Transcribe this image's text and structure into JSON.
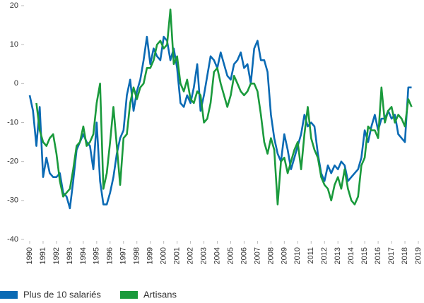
{
  "chart_data": {
    "type": "line",
    "x": [
      1990,
      1990.25,
      1990.5,
      1990.75,
      1991,
      1991.25,
      1991.5,
      1991.75,
      1992,
      1992.25,
      1992.5,
      1992.75,
      1993,
      1993.25,
      1993.5,
      1993.75,
      1994,
      1994.25,
      1994.5,
      1994.75,
      1995,
      1995.25,
      1995.5,
      1995.75,
      1996,
      1996.25,
      1996.5,
      1996.75,
      1997,
      1997.25,
      1997.5,
      1997.75,
      1998,
      1998.25,
      1998.5,
      1998.75,
      1999,
      1999.25,
      1999.5,
      1999.75,
      2000,
      2000.25,
      2000.5,
      2000.75,
      2001,
      2001.25,
      2001.5,
      2001.75,
      2002,
      2002.25,
      2002.5,
      2002.75,
      2003,
      2003.25,
      2003.5,
      2003.75,
      2004,
      2004.25,
      2004.5,
      2004.75,
      2005,
      2005.25,
      2005.5,
      2005.75,
      2006,
      2006.25,
      2006.5,
      2006.75,
      2007,
      2007.25,
      2007.5,
      2007.75,
      2008,
      2008.25,
      2008.5,
      2008.75,
      2009,
      2009.25,
      2009.5,
      2009.75,
      2010,
      2010.25,
      2010.5,
      2010.75,
      2011,
      2011.25,
      2011.5,
      2011.75,
      2012,
      2012.25,
      2012.5,
      2012.75,
      2013,
      2013.25,
      2013.5,
      2013.75,
      2014,
      2014.25,
      2014.5,
      2014.75,
      2015,
      2015.25,
      2015.5,
      2015.75,
      2016,
      2016.25,
      2016.5,
      2016.75,
      2017,
      2017.25,
      2017.5,
      2017.75,
      2018,
      2018.25,
      2018.5
    ],
    "series": [
      {
        "name": "Plus de 10 salariés",
        "color": "#0a6ab4",
        "values": [
          -3,
          -7,
          -16,
          -6,
          -24,
          -19,
          -23,
          -24,
          -24,
          -23,
          -28,
          -29,
          -32,
          -25,
          -17,
          -15,
          -13,
          -15,
          -16,
          -22,
          -10,
          -25,
          -31,
          -31,
          -28,
          -24,
          -18,
          -14,
          -12,
          -3,
          1,
          -7,
          -2,
          1,
          6,
          12,
          5,
          9,
          7,
          6,
          12,
          11,
          6,
          9,
          4,
          -5,
          -6,
          -3,
          -5,
          -1,
          5,
          -7,
          -3,
          2,
          7,
          6,
          4,
          8,
          5,
          2,
          1,
          5,
          6,
          8,
          4,
          5,
          0,
          9,
          11,
          6,
          6,
          3,
          -8,
          -14,
          -18,
          -20,
          -13,
          -17,
          -22,
          -19,
          -16,
          -13,
          -8,
          -11,
          -10,
          -11,
          -18,
          -23,
          -25,
          -21,
          -23,
          -21,
          -22,
          -20,
          -21,
          -25,
          -24,
          -23,
          -22,
          -19,
          -12,
          -15,
          -11,
          -8,
          -12,
          -9,
          -9,
          -7,
          -9,
          -8,
          -13,
          -14,
          -15,
          -1,
          -1
        ]
      },
      {
        "name": "Artisans",
        "color": "#1a9a3c",
        "values": [
          null,
          null,
          -5,
          -12,
          -15,
          -16,
          -14,
          -13,
          -18,
          -25,
          -29,
          -28,
          -27,
          -22,
          -16,
          -15,
          -11,
          -16,
          -15,
          -13,
          -5,
          0,
          -27,
          -23,
          -15,
          -6,
          -16,
          -26,
          -14,
          -13,
          -5,
          -1,
          -4,
          -1,
          0,
          4,
          4,
          6,
          10,
          11,
          9,
          10,
          19,
          5,
          7,
          0,
          -2,
          1,
          -4,
          -5,
          -2,
          -3,
          -10,
          -9,
          -5,
          3,
          4,
          0,
          -3,
          -6,
          -3,
          2,
          0,
          -2,
          -3,
          -2,
          0,
          0,
          -2,
          -8,
          -15,
          -18,
          -14,
          -17,
          -31,
          -20,
          -19,
          -23,
          -20,
          -17,
          -15,
          -22,
          -13,
          -6,
          -14,
          -17,
          -19,
          -24,
          -26,
          -27,
          -30,
          -26,
          -24,
          -27,
          -22,
          -27,
          -30,
          -31,
          -29,
          -21,
          -19,
          -11,
          -12,
          -12,
          -14,
          -1,
          -10,
          -7,
          -6,
          -10,
          -8,
          -9,
          -11,
          -4,
          -6
        ]
      }
    ],
    "xlim": [
      1990,
      2019
    ],
    "xticks": [
      1990,
      1991,
      1992,
      1993,
      1994,
      1995,
      1996,
      1997,
      1998,
      1999,
      2000,
      2001,
      2002,
      2003,
      2004,
      2005,
      2006,
      2007,
      2008,
      2009,
      2010,
      2011,
      2012,
      2013,
      2014,
      2015,
      2016,
      2017,
      2018,
      2019
    ],
    "ylim": [
      -40,
      20
    ],
    "yticks": [
      -40,
      -30,
      -20,
      -10,
      0,
      10,
      20
    ],
    "legend": "bottom"
  }
}
